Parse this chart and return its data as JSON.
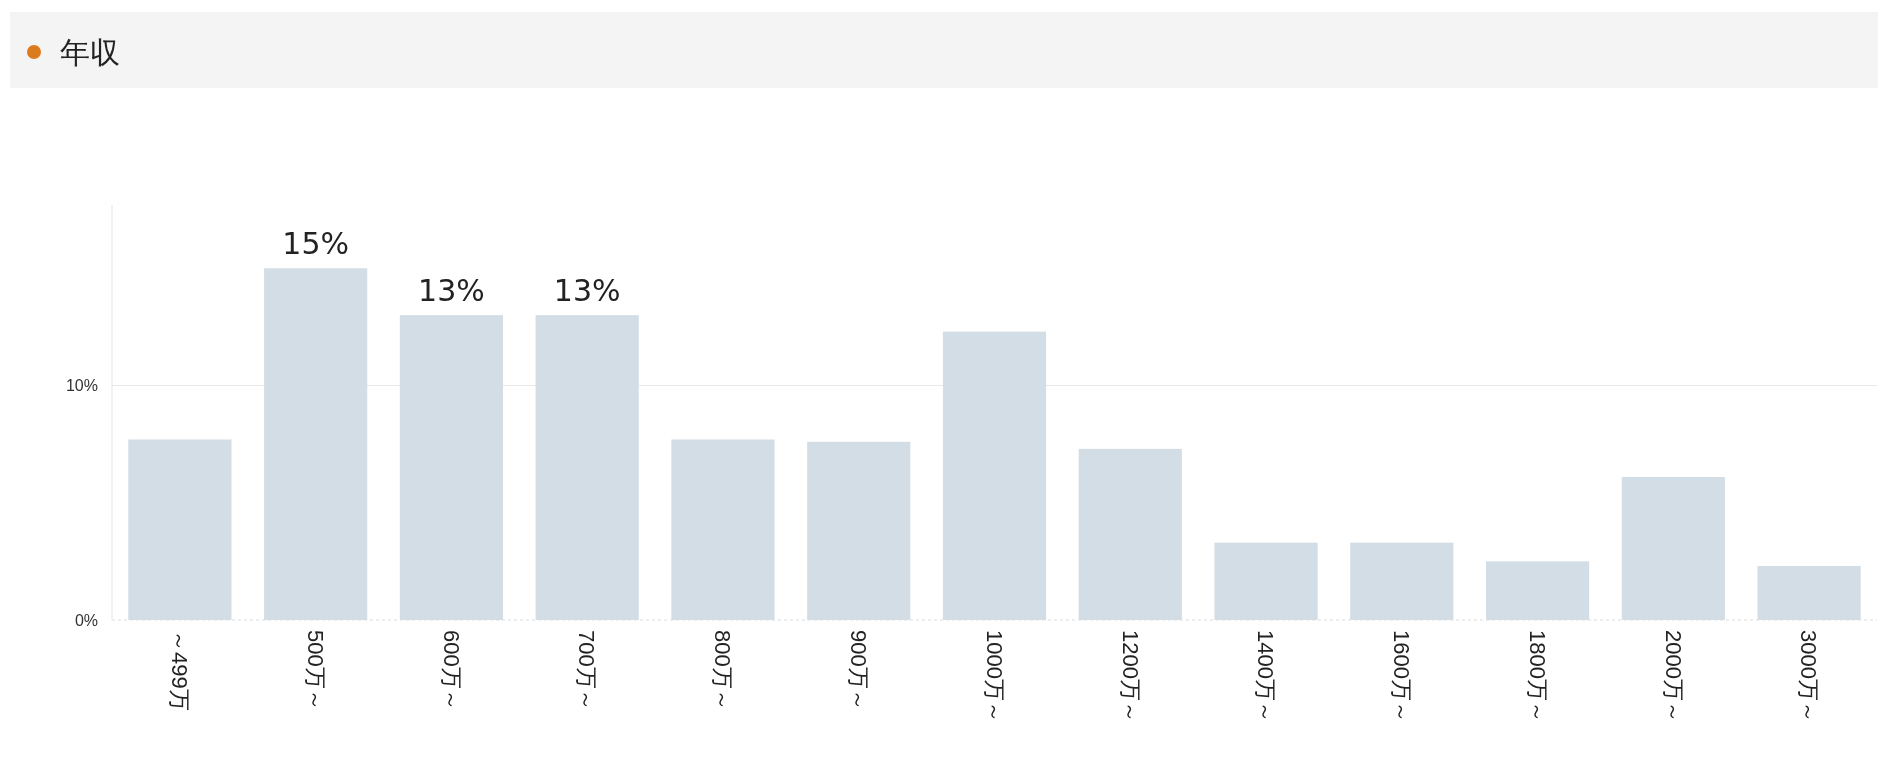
{
  "chart_data": {
    "type": "bar",
    "title": "年収",
    "categories": [
      "～499万",
      "500万～",
      "600万～",
      "700万～",
      "800万～",
      "900万～",
      "1000万～",
      "1200万～",
      "1400万～",
      "1600万～",
      "1800万～",
      "2000万～",
      "3000万～"
    ],
    "values": [
      7.7,
      15,
      13,
      13,
      7.7,
      7.6,
      12.3,
      7.3,
      3.3,
      3.3,
      2.5,
      6.1,
      2.3
    ],
    "value_labels": [
      null,
      "15%",
      "13%",
      "13%",
      null,
      null,
      null,
      null,
      null,
      null,
      null,
      null,
      null
    ],
    "color": "#d2dde5",
    "ylim": [
      0,
      17.7
    ],
    "yticks": [
      {
        "value": 0,
        "label": "0%"
      },
      {
        "value": 10,
        "label": "10%"
      }
    ],
    "grid": "y"
  }
}
